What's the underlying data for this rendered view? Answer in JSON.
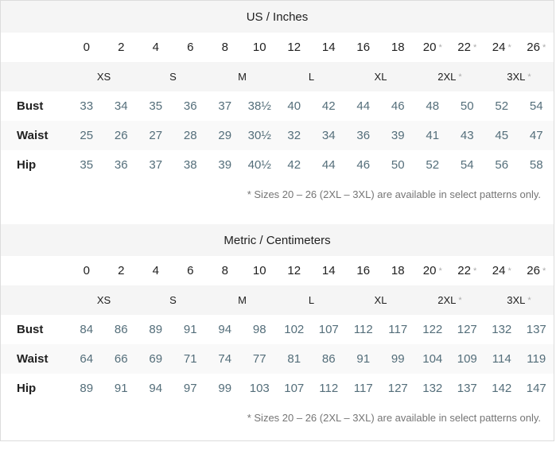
{
  "colors": {
    "border": "#dcdcdc",
    "stripe": "#f5f5f5",
    "stripe-light": "#f9f9f9",
    "text-dark": "#212121",
    "text-value": "#546e7a",
    "text-muted": "#757575",
    "asterisk": "#ababab",
    "background": "#ffffff"
  },
  "tables": [
    {
      "title": "US / Inches",
      "sizes": [
        "0",
        "2",
        "4",
        "6",
        "8",
        "10",
        "12",
        "14",
        "16",
        "18",
        "20",
        "22",
        "24",
        "26"
      ],
      "starred_sizes": [
        "20",
        "22",
        "24",
        "26"
      ],
      "size_groups": [
        {
          "label": "XS",
          "span": 2,
          "starred": false
        },
        {
          "label": "S",
          "span": 2,
          "starred": false
        },
        {
          "label": "M",
          "span": 2,
          "starred": false
        },
        {
          "label": "L",
          "span": 2,
          "starred": false
        },
        {
          "label": "XL",
          "span": 2,
          "starred": false
        },
        {
          "label": "2XL",
          "span": 2,
          "starred": true
        },
        {
          "label": "3XL",
          "span": 2,
          "starred": true
        }
      ],
      "rows": [
        {
          "label": "Bust",
          "values": [
            "33",
            "34",
            "35",
            "36",
            "37",
            "38½",
            "40",
            "42",
            "44",
            "46",
            "48",
            "50",
            "52",
            "54"
          ]
        },
        {
          "label": "Waist",
          "values": [
            "25",
            "26",
            "27",
            "28",
            "29",
            "30½",
            "32",
            "34",
            "36",
            "39",
            "41",
            "43",
            "45",
            "47"
          ]
        },
        {
          "label": "Hip",
          "values": [
            "35",
            "36",
            "37",
            "38",
            "39",
            "40½",
            "42",
            "44",
            "46",
            "50",
            "52",
            "54",
            "56",
            "58"
          ]
        }
      ],
      "footnote": "* Sizes 20 – 26 (2XL – 3XL) are available in select patterns only."
    },
    {
      "title": "Metric / Centimeters",
      "sizes": [
        "0",
        "2",
        "4",
        "6",
        "8",
        "10",
        "12",
        "14",
        "16",
        "18",
        "20",
        "22",
        "24",
        "26"
      ],
      "starred_sizes": [
        "20",
        "22",
        "24",
        "26"
      ],
      "size_groups": [
        {
          "label": "XS",
          "span": 2,
          "starred": false
        },
        {
          "label": "S",
          "span": 2,
          "starred": false
        },
        {
          "label": "M",
          "span": 2,
          "starred": false
        },
        {
          "label": "L",
          "span": 2,
          "starred": false
        },
        {
          "label": "XL",
          "span": 2,
          "starred": false
        },
        {
          "label": "2XL",
          "span": 2,
          "starred": true
        },
        {
          "label": "3XL",
          "span": 2,
          "starred": true
        }
      ],
      "rows": [
        {
          "label": "Bust",
          "values": [
            "84",
            "86",
            "89",
            "91",
            "94",
            "98",
            "102",
            "107",
            "112",
            "117",
            "122",
            "127",
            "132",
            "137"
          ]
        },
        {
          "label": "Waist",
          "values": [
            "64",
            "66",
            "69",
            "71",
            "74",
            "77",
            "81",
            "86",
            "91",
            "99",
            "104",
            "109",
            "114",
            "119"
          ]
        },
        {
          "label": "Hip",
          "values": [
            "89",
            "91",
            "94",
            "97",
            "99",
            "103",
            "107",
            "112",
            "117",
            "127",
            "132",
            "137",
            "142",
            "147"
          ]
        }
      ],
      "footnote": "* Sizes 20 – 26 (2XL – 3XL) are available in select patterns only."
    }
  ]
}
